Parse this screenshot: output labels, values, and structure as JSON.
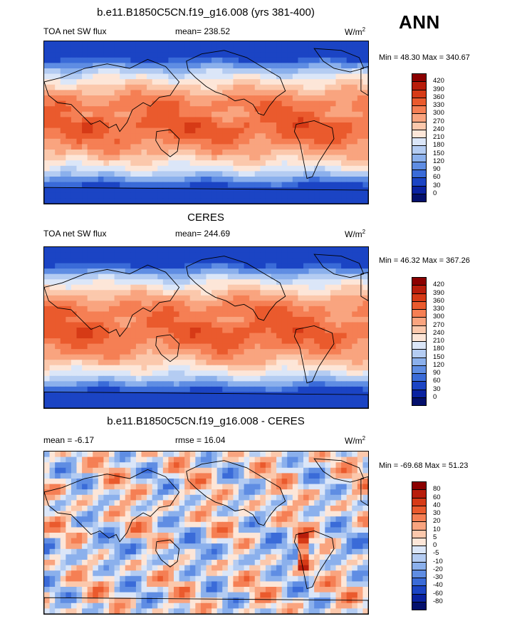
{
  "season": "ANN",
  "panels": [
    {
      "title": "b.e11.B1850C5CN.f19_g16.008 (yrs 381-400)",
      "left_label": "TOA net SW flux",
      "center_label": "mean= 238.52",
      "unit": "W/m",
      "unit_exp": "2",
      "minmax": "Min =  48.30 Max = 340.67",
      "field": "flux_model"
    },
    {
      "title": "CERES",
      "left_label": "TOA net SW flux",
      "center_label": "mean= 244.69",
      "unit": "W/m",
      "unit_exp": "2",
      "minmax": "Min =  46.32 Max = 367.26",
      "field": "flux_obs"
    },
    {
      "title": "b.e11.B1850C5CN.f19_g16.008 - CERES",
      "left_label": "mean =  -6.17",
      "center_label": "rmse =  16.04",
      "unit": "W/m",
      "unit_exp": "2",
      "minmax": "Min = -69.68 Max =  51.23",
      "field": "diff"
    }
  ],
  "flux_colorbar": {
    "labels": [
      "420",
      "390",
      "360",
      "330",
      "300",
      "270",
      "240",
      "210",
      "180",
      "150",
      "120",
      "90",
      "60",
      "30",
      "0"
    ],
    "colors": [
      "#8b0000",
      "#b81d0b",
      "#d63a16",
      "#ea5a2d",
      "#f57f54",
      "#f9a47f",
      "#fbc8ac",
      "#fde6d8",
      "#dbe6f8",
      "#b4ccf2",
      "#8bb0ec",
      "#5f8de3",
      "#3a6bd8",
      "#1b44c4",
      "#0a22a0",
      "#04106c"
    ]
  },
  "diff_colorbar": {
    "labels": [
      "80",
      "60",
      "40",
      "30",
      "20",
      "10",
      "5",
      "0",
      "-5",
      "-10",
      "-20",
      "-30",
      "-40",
      "-60",
      "-80"
    ],
    "colors": [
      "#8b0000",
      "#b81d0b",
      "#d63a16",
      "#ea5a2d",
      "#f57f54",
      "#f9a47f",
      "#fbc8ac",
      "#fde6d8",
      "#dbe6f8",
      "#b4ccf2",
      "#8bb0ec",
      "#5f8de3",
      "#3a6bd8",
      "#1b44c4",
      "#0a22a0",
      "#04106c"
    ]
  }
}
